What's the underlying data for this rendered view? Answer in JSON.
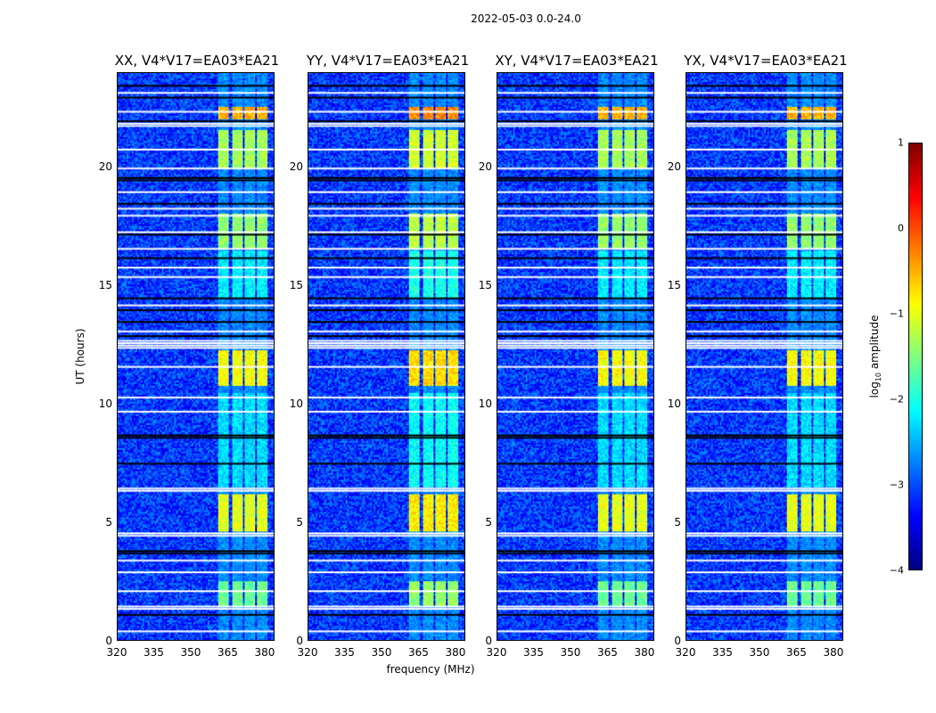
{
  "suptitle": "2022-05-03 0.0-24.0",
  "chart_data": {
    "type": "heatmap",
    "xlabel": "frequency (MHz)",
    "ylabel": "UT (hours)",
    "xlim": [
      320,
      384
    ],
    "ylim": [
      0,
      24
    ],
    "xticks": [
      "320",
      "335",
      "350",
      "365",
      "380"
    ],
    "xtick_values": [
      320,
      335,
      350,
      365,
      380
    ],
    "yticks": [
      "0",
      "5",
      "10",
      "15",
      "20"
    ],
    "ytick_values": [
      0,
      5,
      10,
      15,
      20
    ],
    "panels": [
      {
        "title": "XX, V4*V17=EA03*EA21"
      },
      {
        "title": "YY, V4*V17=EA03*EA21"
      },
      {
        "title": "XY, V4*V17=EA03*EA21"
      },
      {
        "title": "YX, V4*V17=EA03*EA21"
      }
    ],
    "colorbar": {
      "label": "log10 amplitude",
      "label_main": "log",
      "label_sub": "10",
      "label_rest": " amplitude",
      "colormap": "jet",
      "vmin": -4,
      "vmax": 1,
      "ticks": [
        "1",
        "0",
        "−1",
        "−2",
        "−3",
        "−4"
      ],
      "tick_values": [
        1,
        0,
        -1,
        -2,
        -3,
        -4
      ]
    },
    "background_level": -3.1,
    "rfi_subbands_mhz": [
      [
        361,
        365.5
      ],
      [
        366.5,
        371
      ],
      [
        372,
        376
      ],
      [
        377,
        381
      ]
    ],
    "rfi_time_ranges": [
      {
        "start": 1.5,
        "end": 2.5,
        "level": -1.6
      },
      {
        "start": 4.6,
        "end": 6.2,
        "level": -1.0
      },
      {
        "start": 6.5,
        "end": 10.5,
        "level": -2.3
      },
      {
        "start": 10.8,
        "end": 12.3,
        "level": -0.9
      },
      {
        "start": 14.5,
        "end": 16.5,
        "level": -2.2
      },
      {
        "start": 16.6,
        "end": 18.1,
        "level": -1.4
      },
      {
        "start": 20.0,
        "end": 21.6,
        "level": -1.3
      },
      {
        "start": 22.1,
        "end": 22.6,
        "level": -0.5
      }
    ],
    "flagged_rows_hours": [
      0.4,
      1.35,
      1.45,
      2.1,
      2.9,
      3.4,
      4.45,
      4.55,
      6.35,
      6.45,
      9.7,
      10.3,
      11.6,
      12.4,
      12.5,
      12.6,
      12.7,
      13.1,
      14.2,
      15.4,
      15.8,
      16.6,
      17.3,
      18.0,
      18.3,
      19.0,
      20.0,
      20.8,
      21.8,
      21.9,
      22.4,
      23.2
    ],
    "dropout_rows_hours": [
      1.1,
      3.7,
      3.8,
      7.5,
      8.6,
      8.7,
      12.9,
      13.5,
      14.0,
      14.5,
      16.2,
      17.2,
      18.5,
      19.5,
      19.6,
      22.0,
      23.0,
      23.5
    ]
  }
}
